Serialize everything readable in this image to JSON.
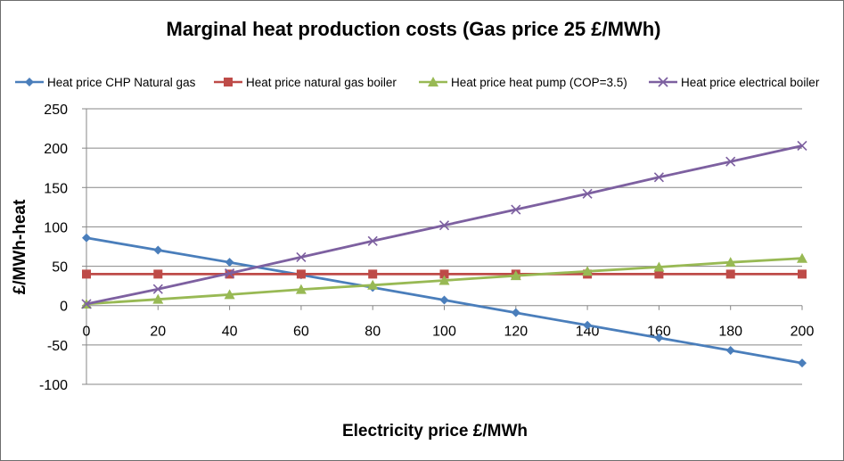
{
  "chart_data": {
    "type": "line",
    "title": "Marginal heat production costs (Gas price 25 £/MWh)",
    "xlabel": "Electricity price £/MWh",
    "ylabel": "£/MWh-heat",
    "x": [
      0,
      20,
      40,
      60,
      80,
      100,
      120,
      140,
      160,
      180,
      200
    ],
    "xlim": [
      0,
      200
    ],
    "ylim": [
      -100,
      250
    ],
    "xticks": [
      "0",
      "20",
      "40",
      "60",
      "80",
      "100",
      "120",
      "140",
      "160",
      "180",
      "200"
    ],
    "yticks": [
      "250",
      "200",
      "150",
      "100",
      "50",
      "0",
      "-50",
      "-100"
    ],
    "grid": "horizontal",
    "legend": "top",
    "series": [
      {
        "name": "Heat price CHP Natural gas",
        "color": "#4a7ebb",
        "marker": "diamond",
        "values": [
          86,
          70.5,
          55,
          39,
          23,
          7,
          -9,
          -25,
          -41,
          -57,
          -73
        ]
      },
      {
        "name": "Heat price natural gas boiler",
        "color": "#be4b48",
        "marker": "square",
        "values": [
          40,
          40,
          40,
          40,
          40,
          40,
          40,
          40,
          40,
          40,
          40
        ]
      },
      {
        "name": "Heat price heat pump (COP=3.5)",
        "color": "#98b954",
        "marker": "triangle",
        "values": [
          2,
          8,
          14,
          20.5,
          26,
          32,
          38,
          43.5,
          49,
          55,
          60
        ]
      },
      {
        "name": "Heat price electrical boiler",
        "color": "#7d60a0",
        "marker": "x",
        "values": [
          2,
          21,
          41,
          61.5,
          82,
          102,
          122,
          142,
          163,
          183,
          203
        ]
      }
    ]
  }
}
